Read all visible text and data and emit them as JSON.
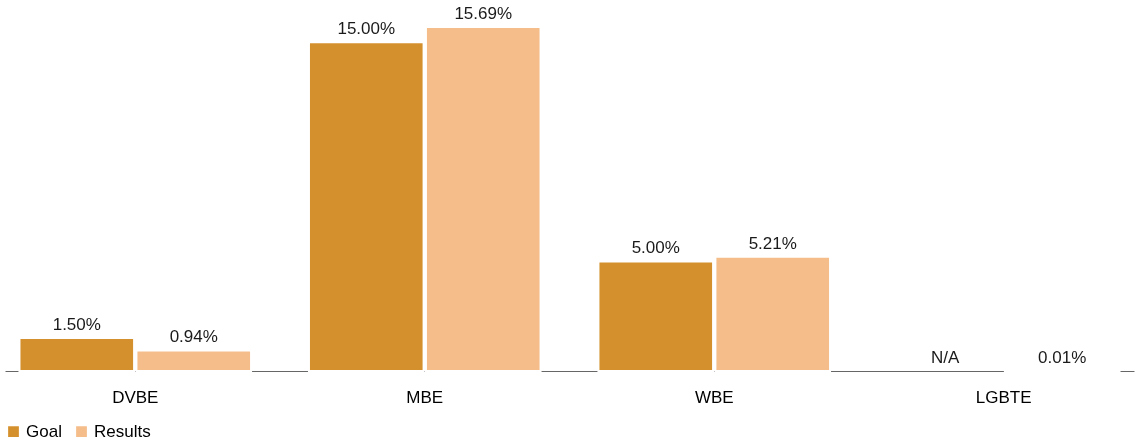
{
  "chart_data": {
    "type": "bar",
    "categories": [
      "DVBE",
      "MBE",
      "WBE",
      "LGBTE"
    ],
    "series": [
      {
        "name": "Goal",
        "color": "#d4902c",
        "values": [
          1.5,
          15.0,
          5.0,
          null
        ],
        "value_labels": [
          "1.50%",
          "15.00%",
          "5.00%",
          "N/A"
        ]
      },
      {
        "name": "Results",
        "color": "#f4bd8a",
        "values": [
          0.94,
          15.69,
          5.21,
          0.01
        ],
        "value_labels": [
          "0.94%",
          "15.69%",
          "5.21%",
          "0.01%"
        ]
      }
    ],
    "legend": "bottom",
    "grid": false
  }
}
